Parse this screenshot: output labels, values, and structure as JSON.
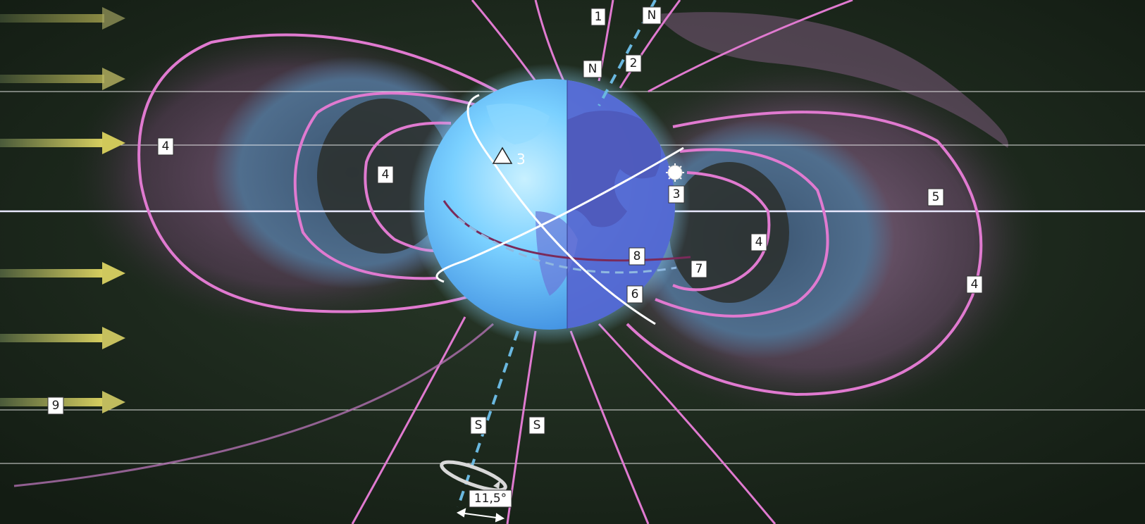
{
  "diagram": {
    "labels": {
      "one": "1",
      "two": "2",
      "three_left": "3",
      "three_right": "3",
      "four_far_left": "4",
      "four_inner_left": "4",
      "four_inner_right": "4",
      "four_far_right": "4",
      "five": "5",
      "six": "6",
      "seven": "7",
      "eight": "8",
      "nine": "9",
      "n_geographic": "N",
      "n_magnetic": "N",
      "s_geographic": "S",
      "s_magnetic": "S",
      "tilt_angle": "11,5°"
    },
    "colors": {
      "background": "#1d2a1c",
      "field_lines": "#e07ad0",
      "belt_inner": "#4a6a8a",
      "belt_outer": "#6a4a6a",
      "earth_light": "#7ad2ff",
      "earth_dark": "#5a6ad8",
      "solar_wind_arrow": "#c9c45a",
      "axis_dashed": "#6ab8e0"
    }
  }
}
